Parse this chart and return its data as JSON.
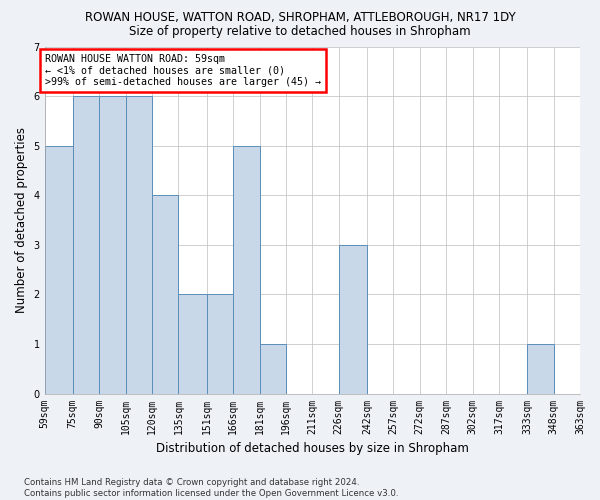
{
  "title": "ROWAN HOUSE, WATTON ROAD, SHROPHAM, ATTLEBOROUGH, NR17 1DY",
  "subtitle": "Size of property relative to detached houses in Shropham",
  "xlabel": "Distribution of detached houses by size in Shropham",
  "ylabel": "Number of detached properties",
  "bin_edges": [
    59,
    75,
    90,
    105,
    120,
    135,
    151,
    166,
    181,
    196,
    211,
    226,
    242,
    257,
    272,
    287,
    302,
    317,
    333,
    348,
    363
  ],
  "bar_heights": [
    5,
    6,
    6,
    6,
    4,
    2,
    2,
    5,
    1,
    0,
    0,
    3,
    0,
    0,
    0,
    0,
    0,
    0,
    1,
    0
  ],
  "bar_color": "#c8d8e8",
  "bar_edge_color": "#5b8db8",
  "annotation_text": "ROWAN HOUSE WATTON ROAD: 59sqm\n← <1% of detached houses are smaller (0)\n>99% of semi-detached houses are larger (45) →",
  "annotation_box_color": "white",
  "annotation_box_edge": "red",
  "ylim": [
    0,
    7
  ],
  "yticks": [
    0,
    1,
    2,
    3,
    4,
    5,
    6,
    7
  ],
  "footer_text": "Contains HM Land Registry data © Crown copyright and database right 2024.\nContains public sector information licensed under the Open Government Licence v3.0.",
  "background_color": "#eef2f7",
  "plot_background": "white",
  "grid_color": "#c8c8c8"
}
